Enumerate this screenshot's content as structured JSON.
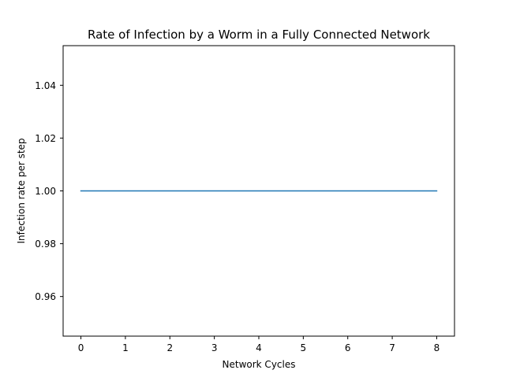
{
  "chart_data": {
    "type": "line",
    "title": "Rate of Infection by a Worm in a Fully Connected Network",
    "xlabel": "Network Cycles",
    "ylabel": "Infection rate per step",
    "xlim": [
      -0.4,
      8.4
    ],
    "ylim": [
      0.945,
      1.055
    ],
    "xticks": [
      0,
      1,
      2,
      3,
      4,
      5,
      6,
      7,
      8
    ],
    "xtick_labels": [
      "0",
      "1",
      "2",
      "3",
      "4",
      "5",
      "6",
      "7",
      "8"
    ],
    "yticks": [
      0.96,
      0.98,
      1.0,
      1.02,
      1.04
    ],
    "ytick_labels": [
      "0.96",
      "0.98",
      "1.00",
      "1.02",
      "1.04"
    ],
    "grid": false,
    "series": [
      {
        "x": [
          0,
          1,
          2,
          3,
          4,
          5,
          6,
          7,
          8
        ],
        "y": [
          1.0,
          1.0,
          1.0,
          1.0,
          1.0,
          1.0,
          1.0,
          1.0,
          1.0
        ],
        "color": "#1f77b4"
      }
    ]
  }
}
